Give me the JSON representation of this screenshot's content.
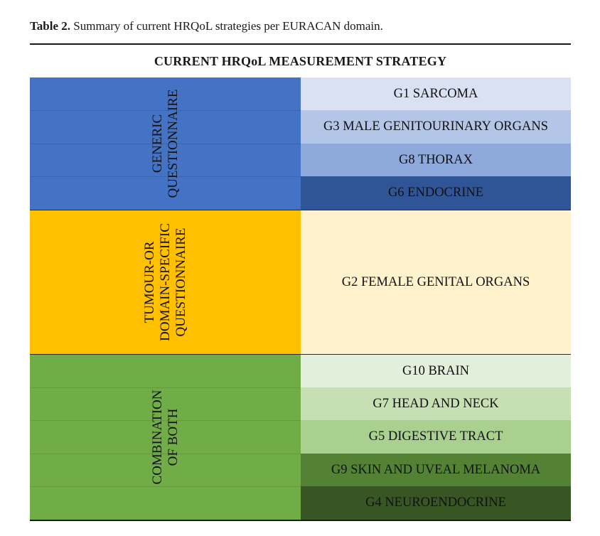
{
  "caption": {
    "label": "Table 2.",
    "text": " Summary of current HRQoL strategies per EURACAN domain."
  },
  "table": {
    "header": "CURRENT HRQoL MEASUREMENT STRATEGY",
    "groups": [
      {
        "label_lines": [
          "GENERIC",
          "QUESTIONNAIRE"
        ],
        "color": "#4472C4",
        "domains": [
          {
            "label": "G1 SARCOMA",
            "color": "#D9E1F2"
          },
          {
            "label": "G3 MALE GENITOURINARY ORGANS",
            "color": "#B4C6E7"
          },
          {
            "label": "G8 THORAX",
            "color": "#8EA9DB"
          },
          {
            "label": "G6 ENDOCRINE",
            "color": "#2F5597"
          }
        ]
      },
      {
        "label_lines": [
          "TUMOUR-OR",
          "DOMAIN-SPECIFIC",
          "QUESTIONNAIRE"
        ],
        "color": "#FFC000",
        "domains": [
          {
            "label": "G2 FEMALE GENITAL ORGANS",
            "color": "#FFF2CC"
          }
        ]
      },
      {
        "label_lines": [
          "COMBINATION",
          "OF BOTH"
        ],
        "color": "#70AD47",
        "domains": [
          {
            "label": "G10 BRAIN",
            "color": "#E2EFDA"
          },
          {
            "label": "G7 HEAD AND NECK",
            "color": "#C6E0B4"
          },
          {
            "label": "G5 DIGESTIVE TRACT",
            "color": "#A9D08E"
          },
          {
            "label": "G9 SKIN AND UVEAL MELANOMA",
            "color": "#548235"
          },
          {
            "label": "G4 NEUROENDOCRINE",
            "color": "#375623"
          }
        ]
      }
    ]
  }
}
